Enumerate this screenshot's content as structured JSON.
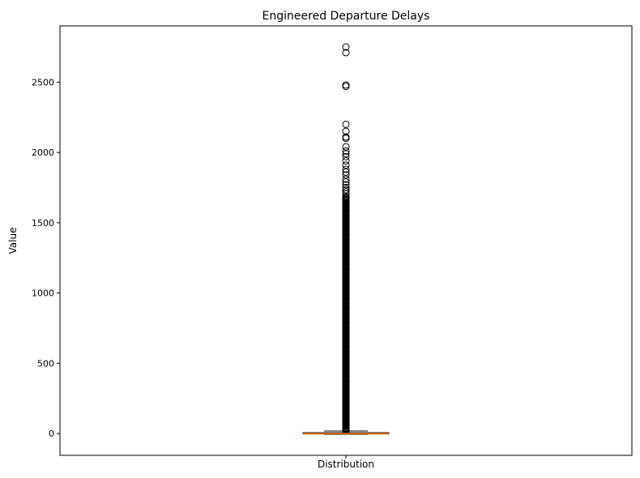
{
  "chart_data": {
    "type": "box",
    "title": "Engineered Departure Delays",
    "xlabel": "",
    "ylabel": "Value",
    "categories": [
      "Distribution"
    ],
    "ylim": [
      -155,
      2900
    ],
    "yticks": [
      0,
      500,
      1000,
      1500,
      2000,
      2500
    ],
    "grid": false,
    "box": {
      "name": "Distribution",
      "whisker_low": -5,
      "q1": -3,
      "median": 0,
      "q3": 6,
      "whisker_high": 18
    },
    "outliers": [
      2750,
      2710,
      2480,
      2470,
      2200,
      2150,
      2110,
      2100,
      2040,
      2010,
      1990,
      1970,
      1940,
      1910,
      1880,
      1860,
      1840,
      1810,
      1790,
      1770,
      1750,
      1735,
      1720,
      1705
    ],
    "outlier_band": [
      19,
      1690
    ],
    "colors": {
      "box": "#000000",
      "median": "#ff7f0e",
      "outlier_edge": "#000000"
    }
  }
}
